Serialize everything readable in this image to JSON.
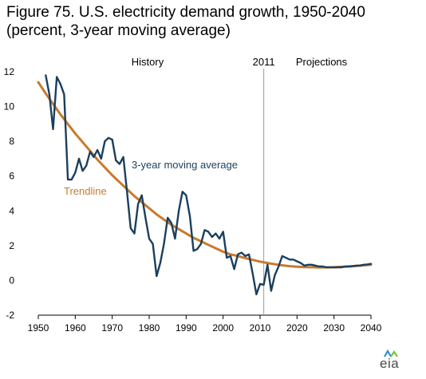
{
  "title_line1": "Figure 75. U.S. electricity demand growth, 1950-2040",
  "title_line2": "(percent, 3-year moving average)",
  "logo_text": "eia",
  "colors": {
    "moving_average": "#1b3f5e",
    "trendline": "#c87a2e",
    "divider": "#9a9a9a"
  },
  "chart_data": {
    "type": "line",
    "title": "Figure 75. U.S. electricity demand growth, 1950-2040",
    "subtitle": "(percent, 3-year moving average)",
    "xlim": [
      1950,
      2040
    ],
    "ylim": [
      -2,
      12
    ],
    "x_ticks": [
      1950,
      1960,
      1970,
      1980,
      1990,
      2000,
      2010,
      2020,
      2030,
      2040
    ],
    "y_ticks": [
      -2,
      0,
      2,
      4,
      6,
      8,
      10,
      12
    ],
    "grid": false,
    "divider_year": 2011,
    "divider_label": "2011",
    "region_labels": [
      "History",
      "Projections"
    ],
    "series": [
      {
        "name": "3-year moving average",
        "x": [
          1952,
          1953,
          1954,
          1955,
          1956,
          1957,
          1958,
          1959,
          1960,
          1961,
          1962,
          1963,
          1964,
          1965,
          1966,
          1967,
          1968,
          1969,
          1970,
          1971,
          1972,
          1973,
          1974,
          1975,
          1976,
          1977,
          1978,
          1979,
          1980,
          1981,
          1982,
          1983,
          1984,
          1985,
          1986,
          1987,
          1988,
          1989,
          1990,
          1991,
          1992,
          1993,
          1994,
          1995,
          1996,
          1997,
          1998,
          1999,
          2000,
          2001,
          2002,
          2003,
          2004,
          2005,
          2006,
          2007,
          2008,
          2009,
          2010,
          2011,
          2012,
          2013,
          2014,
          2015,
          2016,
          2017,
          2018,
          2019,
          2020,
          2021,
          2022,
          2023,
          2024,
          2025,
          2026,
          2027,
          2028,
          2029,
          2030,
          2031,
          2032,
          2033,
          2034,
          2035,
          2036,
          2037,
          2038,
          2039,
          2040
        ],
        "values": [
          11.8,
          10.7,
          8.7,
          11.7,
          11.3,
          10.7,
          5.8,
          5.8,
          6.2,
          7.0,
          6.3,
          6.6,
          7.4,
          7.1,
          7.5,
          7.0,
          8.0,
          8.2,
          8.1,
          6.9,
          6.7,
          7.1,
          5.1,
          3.0,
          2.7,
          4.4,
          4.9,
          3.6,
          2.4,
          2.1,
          0.25,
          1.0,
          2.1,
          3.6,
          3.3,
          2.4,
          4.0,
          5.1,
          4.9,
          3.7,
          1.7,
          1.8,
          2.1,
          2.9,
          2.8,
          2.5,
          2.7,
          2.4,
          2.8,
          1.3,
          1.4,
          0.65,
          1.5,
          1.6,
          1.4,
          1.5,
          0.4,
          -0.8,
          -0.2,
          -0.25,
          0.9,
          -0.6,
          0.3,
          0.8,
          1.4,
          1.3,
          1.2,
          1.2,
          1.1,
          1.0,
          0.85,
          0.9,
          0.9,
          0.85,
          0.8,
          0.8,
          0.75,
          0.75,
          0.75,
          0.75,
          0.75,
          0.8,
          0.8,
          0.82,
          0.85,
          0.85,
          0.9,
          0.92,
          0.95
        ]
      },
      {
        "name": "Trendline",
        "x": [
          1950,
          1952,
          1954,
          1956,
          1958,
          1960,
          1962,
          1964,
          1966,
          1968,
          1970,
          1972,
          1974,
          1976,
          1978,
          1980,
          1982,
          1984,
          1986,
          1988,
          1990,
          1992,
          1994,
          1996,
          1998,
          2000,
          2002,
          2004,
          2006,
          2008,
          2010,
          2012,
          2014,
          2016,
          2018,
          2020,
          2022,
          2024,
          2026,
          2028,
          2030,
          2032,
          2034,
          2036,
          2038,
          2040
        ],
        "values": [
          11.4,
          10.75,
          10.15,
          9.55,
          9.0,
          8.45,
          7.95,
          7.45,
          6.95,
          6.5,
          6.05,
          5.65,
          5.25,
          4.85,
          4.5,
          4.15,
          3.8,
          3.5,
          3.2,
          2.95,
          2.7,
          2.45,
          2.25,
          2.05,
          1.85,
          1.65,
          1.5,
          1.4,
          1.28,
          1.18,
          1.08,
          1.0,
          0.93,
          0.87,
          0.82,
          0.79,
          0.77,
          0.76,
          0.75,
          0.75,
          0.76,
          0.78,
          0.8,
          0.83,
          0.87,
          0.9
        ]
      }
    ],
    "annotations": [
      {
        "text": "3-year moving average",
        "series": "3-year moving average"
      },
      {
        "text": "Trendline",
        "series": "Trendline"
      }
    ]
  }
}
